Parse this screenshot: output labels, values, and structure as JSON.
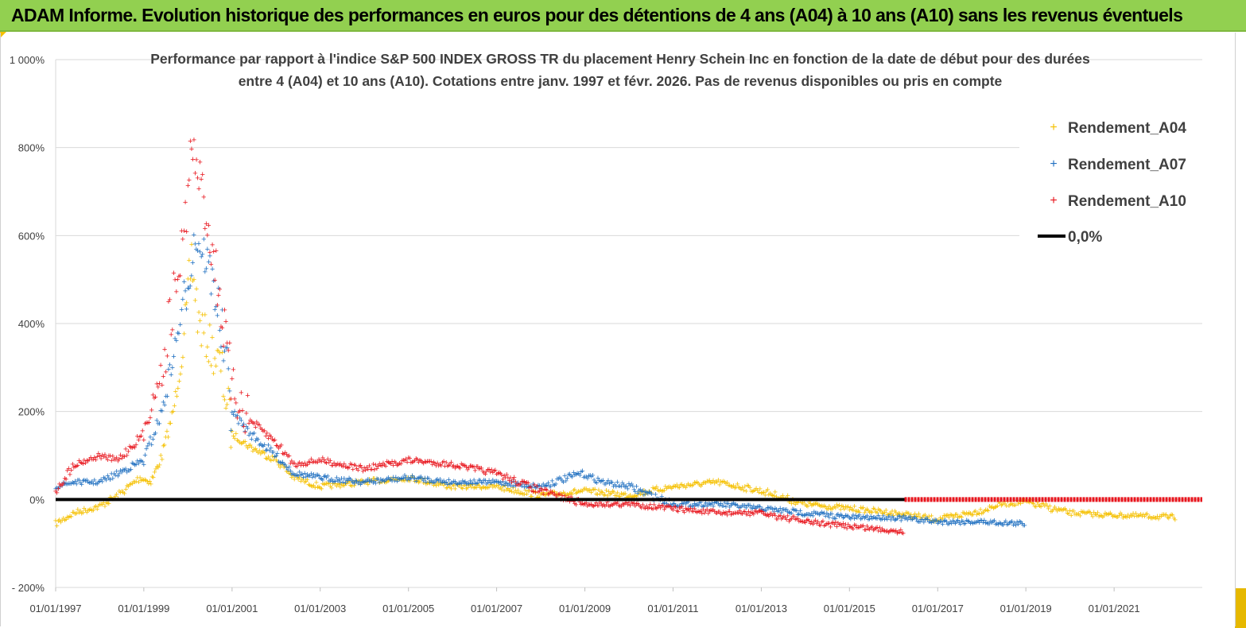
{
  "banner": {
    "title": "ADAM Informe. Evolution historique des performances en euros pour des détentions de 4 ans (A04) à 10 ans (A10) sans les revenus éventuels"
  },
  "colors": {
    "banner_bg": "#92d050",
    "a04": "#f5c000",
    "a07": "#1f6fc0",
    "a10": "#e8141c",
    "zero_line": "#000000"
  },
  "chart_data": {
    "type": "scatter",
    "title_line1": "Performance par rapport à l'indice S&P 500 INDEX GROSS TR  du placement Henry Schein Inc en fonction de la date de début pour des durées",
    "title_line2": "entre 4 (A04) et 10 ans (A10). Cotations entre janv. 1997 et févr. 2026. Pas de revenus disponibles ou pris en compte",
    "xlabel": "",
    "ylabel": "",
    "x_range": [
      "1997-01-01",
      "2023-01-01"
    ],
    "ylim": [
      -200,
      1000
    ],
    "y_ticks": [
      -200,
      0,
      200,
      400,
      600,
      800,
      1000
    ],
    "y_tick_labels": [
      "- 200%",
      "0%",
      "200%",
      "400%",
      "600%",
      "800%",
      "1 000%"
    ],
    "x_tick_labels": [
      "01/01/1997",
      "01/01/1999",
      "01/01/2001",
      "01/01/2003",
      "01/01/2005",
      "01/01/2007",
      "01/01/2009",
      "01/01/2011",
      "01/01/2013",
      "01/01/2015",
      "01/01/2017",
      "01/01/2019",
      "01/01/2021"
    ],
    "grid": "horizontal",
    "legend_position": "top-right",
    "legend": [
      "Rendement_A04",
      "Rendement_A07",
      "Rendement_A10",
      "0,0%"
    ],
    "series": [
      {
        "name": "Rendement_A04",
        "points": [
          [
            "1997-01-01",
            -55
          ],
          [
            "1997-06-01",
            -30
          ],
          [
            "1998-01-01",
            -15
          ],
          [
            "1998-06-01",
            10
          ],
          [
            "1998-12-01",
            50
          ],
          [
            "1999-03-01",
            40
          ],
          [
            "1999-06-01",
            100
          ],
          [
            "1999-09-01",
            200
          ],
          [
            "1999-12-01",
            350
          ],
          [
            "2000-02-01",
            550
          ],
          [
            "2000-04-01",
            400
          ],
          [
            "2000-07-01",
            350
          ],
          [
            "2000-10-01",
            300
          ],
          [
            "2001-01-01",
            150
          ],
          [
            "2001-06-01",
            120
          ],
          [
            "2002-01-01",
            90
          ],
          [
            "2002-06-01",
            50
          ],
          [
            "2003-01-01",
            30
          ],
          [
            "2004-01-01",
            40
          ],
          [
            "2005-01-01",
            50
          ],
          [
            "2006-01-01",
            30
          ],
          [
            "2007-01-01",
            30
          ],
          [
            "2008-01-01",
            10
          ],
          [
            "2009-01-01",
            20
          ],
          [
            "2010-01-01",
            10
          ],
          [
            "2011-01-01",
            30
          ],
          [
            "2012-01-01",
            40
          ],
          [
            "2013-01-01",
            20
          ],
          [
            "2014-01-01",
            -10
          ],
          [
            "2015-01-01",
            -20
          ],
          [
            "2016-01-01",
            -30
          ],
          [
            "2017-01-01",
            -45
          ],
          [
            "2018-01-01",
            -25
          ],
          [
            "2018-06-01",
            -10
          ],
          [
            "2019-01-01",
            -5
          ],
          [
            "2020-01-01",
            -30
          ],
          [
            "2021-01-01",
            -35
          ],
          [
            "2022-06-01",
            -40
          ]
        ]
      },
      {
        "name": "Rendement_A07",
        "points": [
          [
            "1997-01-01",
            30
          ],
          [
            "1997-06-01",
            40
          ],
          [
            "1998-01-01",
            40
          ],
          [
            "1998-06-01",
            60
          ],
          [
            "1999-01-01",
            90
          ],
          [
            "1999-06-01",
            200
          ],
          [
            "1999-12-01",
            450
          ],
          [
            "2000-03-01",
            600
          ],
          [
            "2000-06-01",
            550
          ],
          [
            "2000-09-01",
            450
          ],
          [
            "2001-01-01",
            200
          ],
          [
            "2001-06-01",
            150
          ],
          [
            "2002-01-01",
            100
          ],
          [
            "2002-06-01",
            60
          ],
          [
            "2003-01-01",
            50
          ],
          [
            "2004-01-01",
            40
          ],
          [
            "2005-01-01",
            50
          ],
          [
            "2006-01-01",
            40
          ],
          [
            "2007-01-01",
            40
          ],
          [
            "2008-01-01",
            30
          ],
          [
            "2008-12-01",
            60
          ],
          [
            "2009-06-01",
            40
          ],
          [
            "2010-01-01",
            30
          ],
          [
            "2011-01-01",
            -10
          ],
          [
            "2012-01-01",
            -10
          ],
          [
            "2013-01-01",
            -20
          ],
          [
            "2014-01-01",
            -30
          ],
          [
            "2015-01-01",
            -40
          ],
          [
            "2016-01-01",
            -40
          ],
          [
            "2017-01-01",
            -50
          ],
          [
            "2018-01-01",
            -50
          ],
          [
            "2019-01-01",
            -55
          ]
        ]
      },
      {
        "name": "Rendement_A10",
        "points": [
          [
            "1997-01-01",
            20
          ],
          [
            "1997-06-01",
            80
          ],
          [
            "1998-01-01",
            100
          ],
          [
            "1998-06-01",
            90
          ],
          [
            "1999-01-01",
            150
          ],
          [
            "1999-06-01",
            300
          ],
          [
            "1999-12-01",
            600
          ],
          [
            "2000-02-01",
            800
          ],
          [
            "2000-05-01",
            700
          ],
          [
            "2000-09-01",
            500
          ],
          [
            "2001-01-01",
            250
          ],
          [
            "2001-06-01",
            180
          ],
          [
            "2002-01-01",
            130
          ],
          [
            "2002-06-01",
            80
          ],
          [
            "2003-01-01",
            90
          ],
          [
            "2004-01-01",
            70
          ],
          [
            "2005-01-01",
            90
          ],
          [
            "2006-01-01",
            80
          ],
          [
            "2007-01-01",
            60
          ],
          [
            "2008-01-01",
            20
          ],
          [
            "2009-01-01",
            -10
          ],
          [
            "2010-01-01",
            -10
          ],
          [
            "2011-01-01",
            -20
          ],
          [
            "2012-01-01",
            -30
          ],
          [
            "2013-01-01",
            -30
          ],
          [
            "2014-01-01",
            -50
          ],
          [
            "2015-01-01",
            -60
          ],
          [
            "2016-01-01",
            -70
          ],
          [
            "2016-04-01",
            -72
          ]
        ]
      },
      {
        "name": "Rendement_A10",
        "points": [
          [
            "2016-04-01",
            0
          ],
          [
            "2023-01-01",
            0
          ]
        ]
      },
      {
        "name": "0,0%",
        "points": [
          [
            "1997-01-01",
            0
          ],
          [
            "2016-04-01",
            0
          ]
        ]
      }
    ]
  }
}
